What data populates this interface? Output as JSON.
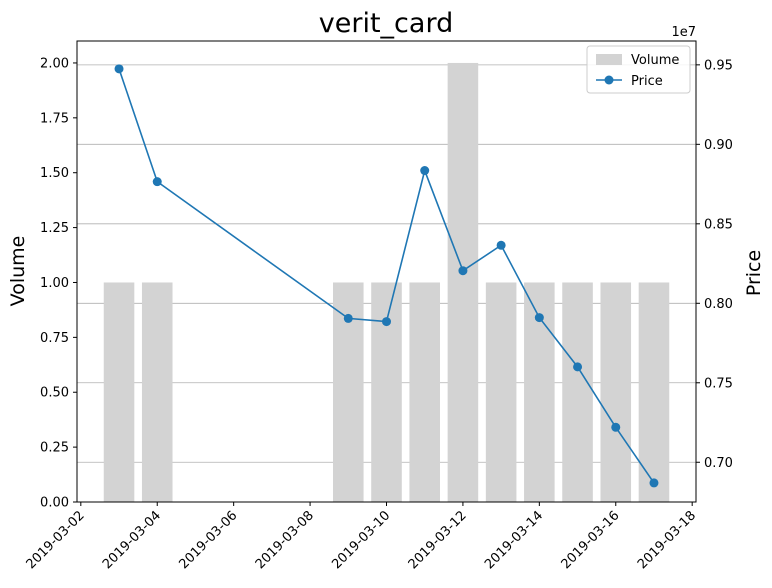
{
  "chart_data": {
    "type": "bar+line",
    "title": "verit_card",
    "y_left_label": "Volume",
    "y_right_label": "Price",
    "y_right_offset": "1e7",
    "x": [
      "2019-03-03",
      "2019-03-04",
      "2019-03-09",
      "2019-03-10",
      "2019-03-11",
      "2019-03-12",
      "2019-03-13",
      "2019-03-14",
      "2019-03-15",
      "2019-03-16",
      "2019-03-17"
    ],
    "series": [
      {
        "name": "Volume",
        "kind": "bar",
        "axis": "left",
        "color": "#d3d3d3",
        "values": [
          1,
          1,
          1,
          1,
          1,
          2,
          1,
          1,
          1,
          1,
          1
        ]
      },
      {
        "name": "Price",
        "kind": "line",
        "axis": "right",
        "color": "#1f77b4",
        "values": [
          0.9475,
          0.8765,
          0.7905,
          0.7885,
          0.8835,
          0.8205,
          0.8365,
          0.791,
          0.76,
          0.722,
          0.687
        ]
      }
    ],
    "x_ticks": [
      "2019-03-02",
      "2019-03-04",
      "2019-03-06",
      "2019-03-08",
      "2019-03-10",
      "2019-03-12",
      "2019-03-14",
      "2019-03-16",
      "2019-03-18"
    ],
    "x_range": [
      "2019-03-02",
      "2019-03-18"
    ],
    "y_left_ticks": [
      "0.00",
      "0.25",
      "0.50",
      "0.75",
      "1.00",
      "1.25",
      "1.50",
      "1.75",
      "2.00"
    ],
    "y_left_range": [
      0,
      2.1
    ],
    "y_right_ticks": [
      "0.70",
      "0.75",
      "0.80",
      "0.85",
      "0.90",
      "0.95"
    ],
    "y_right_range": [
      0.675,
      0.965
    ],
    "grid": "horizontal, right axis",
    "legend_position": "top-right"
  }
}
